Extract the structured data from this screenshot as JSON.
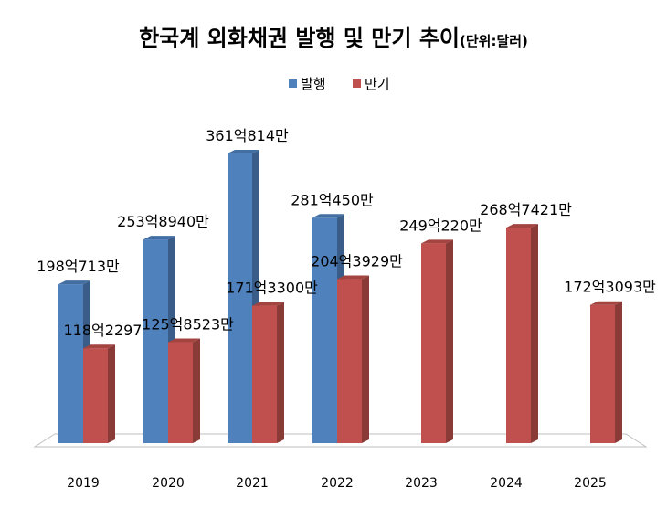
{
  "chart_data": {
    "type": "bar",
    "title": "한국계 외화채권 발행 및 만기 추이",
    "unit_label": "(단위:달러)",
    "categories": [
      "2019",
      "2020",
      "2021",
      "2022",
      "2023",
      "2024",
      "2025"
    ],
    "series": [
      {
        "name": "발행",
        "color": "#4F81BD",
        "values": [
          19807130000,
          25389400000,
          36108140000,
          28104500000,
          null,
          null,
          null
        ],
        "labels": [
          "198억713만",
          "253억8940만",
          "361억814만",
          "281억450만",
          null,
          null,
          null
        ]
      },
      {
        "name": "만기",
        "color": "#C0504D",
        "values": [
          11822970000,
          12585230000,
          17133000000,
          20439290000,
          24902200000,
          26874210000,
          17230930000
        ],
        "labels": [
          "118억2297",
          "125억8523만",
          "171억3300만",
          "204억3929만",
          "249억220만",
          "268억7421만",
          "172억3093만"
        ]
      }
    ],
    "legend_position": "top",
    "grid": false
  }
}
